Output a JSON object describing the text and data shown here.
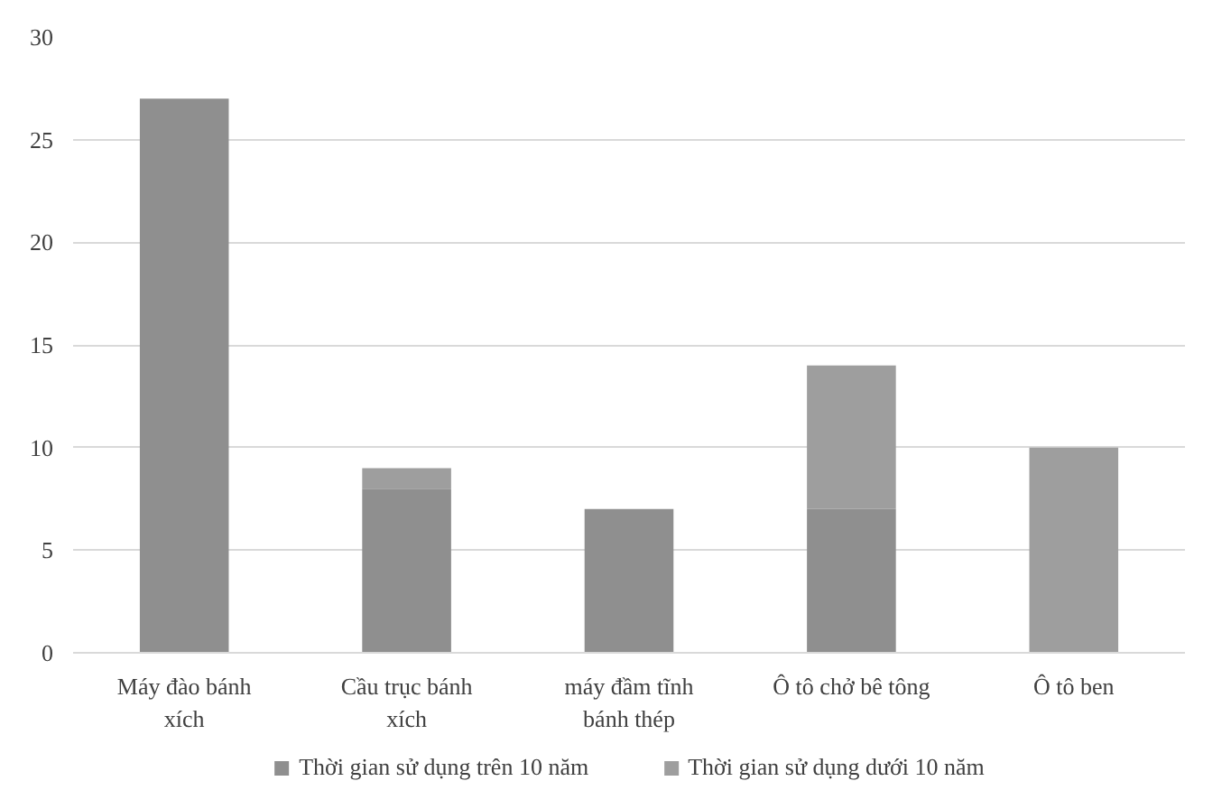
{
  "chart_data": {
    "type": "bar",
    "stacked": true,
    "categories": [
      "Máy đào bánh xích",
      "Cầu trục bánh xích",
      "máy đầm tĩnh bánh thép",
      "Ô tô chở bê tông",
      "Ô tô ben"
    ],
    "series": [
      {
        "name": "Thời gian sử dụng trên 10 năm",
        "color": "#8f8f8f",
        "values": [
          27,
          8,
          7,
          7,
          0
        ]
      },
      {
        "name": "Thời gian sử dụng dưới 10 năm",
        "color": "#9e9e9e",
        "values": [
          0,
          1,
          0,
          7,
          10
        ]
      }
    ],
    "ylim": [
      0,
      30
    ],
    "yticks": [
      0,
      5,
      10,
      15,
      20,
      25,
      30
    ],
    "grid": "y",
    "legend": "bottom"
  }
}
